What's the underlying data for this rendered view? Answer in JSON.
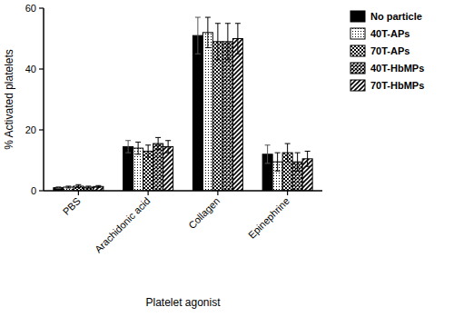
{
  "chart_data": {
    "type": "bar",
    "x_label": "Platelet agonist",
    "y_label": "% Activated platelets",
    "categories": [
      "PBS",
      "Arachidonic acid",
      "Collagen",
      "Epinephrine"
    ],
    "series": [
      {
        "name": "No particle",
        "color": "#000000",
        "values": [
          1.0,
          14.5,
          51,
          12
        ],
        "errors": [
          0.3,
          2.0,
          6.0,
          3.0
        ]
      },
      {
        "name": "40T-APs",
        "color": "#000000",
        "values": [
          1.2,
          14,
          52,
          9.5
        ],
        "errors": [
          0.3,
          2.0,
          5.0,
          3.0
        ]
      },
      {
        "name": "70T-APs",
        "color": "#000000",
        "values": [
          1.5,
          13,
          49,
          12.5
        ],
        "errors": [
          0.5,
          2.0,
          6.0,
          3.0
        ]
      },
      {
        "name": "40T-HbMPs",
        "color": "#000000",
        "values": [
          1.2,
          15.5,
          49,
          9.5
        ],
        "errors": [
          0.3,
          2.0,
          6.0,
          3.0
        ]
      },
      {
        "name": "70T-HbMPs",
        "color": "#000000",
        "values": [
          1.4,
          14.5,
          50,
          10.5
        ],
        "errors": [
          0.3,
          2.0,
          5.0,
          2.5
        ]
      }
    ],
    "ylim": [
      0,
      60
    ],
    "yticks": [
      0,
      20,
      40,
      60
    ],
    "grid": false,
    "legend": "top-right"
  }
}
